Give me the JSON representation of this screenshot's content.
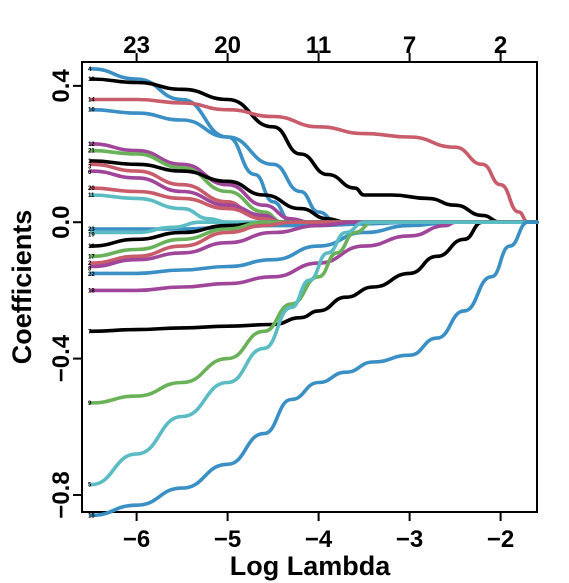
{
  "chart_data": {
    "type": "line",
    "title": "",
    "xlabel": "Log Lambda",
    "ylabel": "Coefficients",
    "xlim": [
      -6.6,
      -1.6
    ],
    "ylim": [
      -0.85,
      0.47
    ],
    "xticks": [
      -6,
      -5,
      -4,
      -3,
      -2
    ],
    "xtick_labels": [
      "−6",
      "−5",
      "−4",
      "−3",
      "−2"
    ],
    "yticks": [
      0.4,
      0.0,
      -0.4,
      -0.8
    ],
    "ytick_labels": [
      "0.4",
      "0.0",
      "−0.4",
      "−0.8"
    ],
    "top_axis": {
      "ticks": [
        -6.0,
        -5.0,
        -4.0,
        -3.0,
        -2.0
      ],
      "labels": [
        "23",
        "20",
        "11",
        "7",
        "2"
      ]
    },
    "grid": false,
    "legend": "none",
    "series": [
      {
        "name": "4",
        "color": "#3a8fc4",
        "points": [
          [
            -6.5,
            0.45
          ],
          [
            -6.0,
            0.42
          ],
          [
            -5.5,
            0.36
          ],
          [
            -5.0,
            0.25
          ],
          [
            -4.7,
            0.14
          ],
          [
            -4.5,
            0.06
          ],
          [
            -4.3,
            0.0
          ]
        ]
      },
      {
        "name": "13",
        "color": "#000000",
        "points": [
          [
            -6.5,
            0.42
          ],
          [
            -6.0,
            0.41
          ],
          [
            -5.5,
            0.39
          ],
          [
            -5.0,
            0.36
          ],
          [
            -4.5,
            0.28
          ],
          [
            -4.2,
            0.2
          ],
          [
            -3.9,
            0.14
          ],
          [
            -3.6,
            0.1
          ],
          [
            -3.5,
            0.08
          ],
          [
            -3.2,
            0.08
          ],
          [
            -2.8,
            0.07
          ],
          [
            -2.5,
            0.05
          ],
          [
            -2.2,
            0.02
          ],
          [
            -2.0,
            0.0
          ]
        ]
      },
      {
        "name": "14",
        "color": "#c95c6a",
        "points": [
          [
            -6.5,
            0.36
          ],
          [
            -6.0,
            0.36
          ],
          [
            -5.5,
            0.35
          ],
          [
            -5.0,
            0.33
          ],
          [
            -4.5,
            0.31
          ],
          [
            -4.0,
            0.28
          ],
          [
            -3.5,
            0.26
          ],
          [
            -3.0,
            0.25
          ],
          [
            -2.5,
            0.22
          ],
          [
            -2.2,
            0.17
          ],
          [
            -2.0,
            0.11
          ],
          [
            -1.8,
            0.03
          ],
          [
            -1.7,
            0.0
          ]
        ]
      },
      {
        "name": "10",
        "color": "#3a8fc4",
        "points": [
          [
            -6.5,
            0.33
          ],
          [
            -6.0,
            0.32
          ],
          [
            -5.5,
            0.3
          ],
          [
            -5.0,
            0.25
          ],
          [
            -4.5,
            0.17
          ],
          [
            -4.2,
            0.09
          ],
          [
            -4.0,
            0.03
          ],
          [
            -3.8,
            0.0
          ]
        ]
      },
      {
        "name": "12",
        "color": "#a0469a",
        "points": [
          [
            -6.5,
            0.23
          ],
          [
            -6.0,
            0.21
          ],
          [
            -5.5,
            0.17
          ],
          [
            -5.0,
            0.11
          ],
          [
            -4.6,
            0.05
          ],
          [
            -4.3,
            0.01
          ],
          [
            -4.1,
            0.0
          ]
        ]
      },
      {
        "name": "21",
        "color": "#6ab25a",
        "points": [
          [
            -6.5,
            0.21
          ],
          [
            -6.0,
            0.2
          ],
          [
            -5.5,
            0.16
          ],
          [
            -5.0,
            0.09
          ],
          [
            -4.6,
            0.03
          ],
          [
            -4.4,
            0.0
          ]
        ]
      },
      {
        "name": "1",
        "color": "#000000",
        "points": [
          [
            -6.5,
            0.18
          ],
          [
            -6.0,
            0.17
          ],
          [
            -5.5,
            0.15
          ],
          [
            -5.0,
            0.12
          ],
          [
            -4.6,
            0.08
          ],
          [
            -4.2,
            0.04
          ],
          [
            -3.9,
            0.01
          ],
          [
            -3.7,
            0.0
          ]
        ]
      },
      {
        "name": "3",
        "color": "#c95c6a",
        "points": [
          [
            -6.5,
            0.17
          ],
          [
            -6.0,
            0.15
          ],
          [
            -5.5,
            0.11
          ],
          [
            -5.0,
            0.06
          ],
          [
            -4.7,
            0.02
          ],
          [
            -4.6,
            0.0
          ]
        ]
      },
      {
        "name": "6",
        "color": "#a0469a",
        "points": [
          [
            -6.5,
            0.15
          ],
          [
            -6.0,
            0.13
          ],
          [
            -5.5,
            0.09
          ],
          [
            -5.0,
            0.05
          ],
          [
            -4.6,
            0.02
          ],
          [
            -4.4,
            0.0
          ]
        ]
      },
      {
        "name": "20",
        "color": "#c95c6a",
        "points": [
          [
            -6.5,
            0.1
          ],
          [
            -6.0,
            0.09
          ],
          [
            -5.5,
            0.07
          ],
          [
            -5.0,
            0.04
          ],
          [
            -4.6,
            0.01
          ],
          [
            -4.4,
            0.0
          ]
        ]
      },
      {
        "name": "11",
        "color": "#5bbcc4",
        "points": [
          [
            -6.5,
            0.08
          ],
          [
            -6.0,
            0.07
          ],
          [
            -5.5,
            0.04
          ],
          [
            -5.2,
            0.01
          ],
          [
            -5.0,
            0.0
          ]
        ]
      },
      {
        "name": "23",
        "color": "#3a8fc4",
        "points": [
          [
            -6.5,
            -0.02
          ],
          [
            -6.0,
            -0.02
          ],
          [
            -5.5,
            -0.02
          ],
          [
            -5.0,
            -0.015
          ],
          [
            -4.5,
            -0.01
          ],
          [
            -4.0,
            -0.01
          ],
          [
            -3.5,
            -0.005
          ],
          [
            -3.0,
            0.0
          ]
        ]
      },
      {
        "name": "19",
        "color": "#5bbcc4",
        "points": [
          [
            -6.5,
            -0.03
          ],
          [
            -6.0,
            -0.03
          ],
          [
            -5.6,
            -0.015
          ],
          [
            -5.3,
            0.0
          ]
        ]
      },
      {
        "name": "16",
        "color": "#000000",
        "points": [
          [
            -6.5,
            -0.07
          ],
          [
            -6.0,
            -0.05
          ],
          [
            -5.5,
            -0.03
          ],
          [
            -5.0,
            -0.01
          ],
          [
            -4.5,
            0.0
          ]
        ]
      },
      {
        "name": "17",
        "color": "#6ab25a",
        "points": [
          [
            -6.5,
            -0.1
          ],
          [
            -6.0,
            -0.08
          ],
          [
            -5.5,
            -0.05
          ],
          [
            -5.0,
            -0.02
          ],
          [
            -4.6,
            0.0
          ]
        ]
      },
      {
        "name": "2",
        "color": "#c95c6a",
        "points": [
          [
            -6.5,
            -0.12
          ],
          [
            -6.0,
            -0.1
          ],
          [
            -5.5,
            -0.07
          ],
          [
            -5.0,
            -0.03
          ],
          [
            -4.6,
            -0.01
          ],
          [
            -4.3,
            0.0
          ]
        ]
      },
      {
        "name": "8",
        "color": "#a0469a",
        "points": [
          [
            -6.5,
            -0.13
          ],
          [
            -6.0,
            -0.11
          ],
          [
            -5.5,
            -0.09
          ],
          [
            -5.0,
            -0.06
          ],
          [
            -4.5,
            -0.03
          ],
          [
            -4.0,
            -0.01
          ],
          [
            -3.6,
            0.0
          ]
        ]
      },
      {
        "name": "22",
        "color": "#3a8fc4",
        "points": [
          [
            -6.5,
            -0.15
          ],
          [
            -6.0,
            -0.15
          ],
          [
            -5.5,
            -0.14
          ],
          [
            -5.0,
            -0.13
          ],
          [
            -4.5,
            -0.11
          ],
          [
            -4.0,
            -0.07
          ],
          [
            -3.5,
            -0.03
          ],
          [
            -3.0,
            -0.01
          ],
          [
            -2.5,
            0.0
          ]
        ]
      },
      {
        "name": "18",
        "color": "#a0469a",
        "points": [
          [
            -6.5,
            -0.2
          ],
          [
            -6.0,
            -0.2
          ],
          [
            -5.5,
            -0.19
          ],
          [
            -5.0,
            -0.18
          ],
          [
            -4.5,
            -0.16
          ],
          [
            -4.0,
            -0.12
          ],
          [
            -3.5,
            -0.07
          ],
          [
            -3.0,
            -0.04
          ],
          [
            -2.6,
            -0.01
          ],
          [
            -2.5,
            0.0
          ]
        ]
      },
      {
        "name": "7",
        "color": "#000000",
        "points": [
          [
            -6.5,
            -0.32
          ],
          [
            -6.0,
            -0.315
          ],
          [
            -5.5,
            -0.31
          ],
          [
            -5.0,
            -0.305
          ],
          [
            -4.5,
            -0.3
          ],
          [
            -4.2,
            -0.28
          ],
          [
            -4.0,
            -0.26
          ],
          [
            -3.7,
            -0.22
          ],
          [
            -3.4,
            -0.19
          ],
          [
            -3.0,
            -0.15
          ],
          [
            -2.7,
            -0.1
          ],
          [
            -2.4,
            -0.05
          ],
          [
            -2.2,
            0.0
          ]
        ]
      },
      {
        "name": "9",
        "color": "#6ab25a",
        "points": [
          [
            -6.5,
            -0.53
          ],
          [
            -6.0,
            -0.51
          ],
          [
            -5.5,
            -0.47
          ],
          [
            -5.0,
            -0.4
          ],
          [
            -4.6,
            -0.32
          ],
          [
            -4.3,
            -0.24
          ],
          [
            -4.0,
            -0.16
          ],
          [
            -3.8,
            -0.09
          ],
          [
            -3.6,
            -0.03
          ],
          [
            -3.4,
            0.0
          ]
        ]
      },
      {
        "name": "5",
        "color": "#5bbcc4",
        "points": [
          [
            -6.5,
            -0.77
          ],
          [
            -6.0,
            -0.68
          ],
          [
            -5.5,
            -0.57
          ],
          [
            -5.0,
            -0.47
          ],
          [
            -4.6,
            -0.37
          ],
          [
            -4.3,
            -0.25
          ],
          [
            -4.1,
            -0.17
          ],
          [
            -3.9,
            -0.09
          ],
          [
            -3.7,
            -0.03
          ],
          [
            -3.5,
            0.0
          ]
        ]
      },
      {
        "name": "15",
        "color": "#3a8fc4",
        "points": [
          [
            -6.5,
            -0.86
          ],
          [
            -6.0,
            -0.83
          ],
          [
            -5.5,
            -0.78
          ],
          [
            -5.0,
            -0.71
          ],
          [
            -4.6,
            -0.62
          ],
          [
            -4.3,
            -0.52
          ],
          [
            -4.0,
            -0.47
          ],
          [
            -3.7,
            -0.44
          ],
          [
            -3.4,
            -0.41
          ],
          [
            -3.0,
            -0.39
          ],
          [
            -2.7,
            -0.34
          ],
          [
            -2.4,
            -0.26
          ],
          [
            -2.1,
            -0.16
          ],
          [
            -1.9,
            -0.07
          ],
          [
            -1.7,
            0.0
          ]
        ]
      }
    ]
  }
}
